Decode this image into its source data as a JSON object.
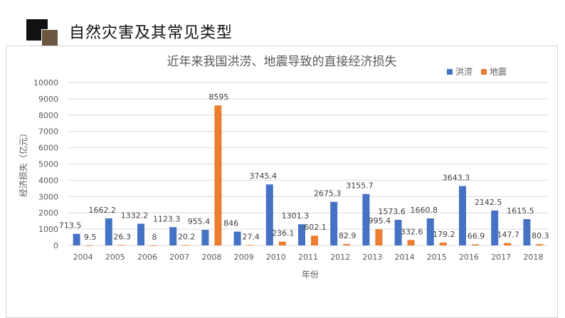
{
  "slide": {
    "title": "自然灾害及其常见类型"
  },
  "colors": {
    "flood": "#4472C4",
    "earthquake": "#ED7D31",
    "grid": "#dcdcdc",
    "text": "#595959"
  },
  "chart_data": {
    "type": "bar",
    "title": "近年来我国洪涝、地震导致的直接经济损失",
    "xlabel": "年份",
    "ylabel": "经济损失（亿元）",
    "ylim": [
      0,
      10000
    ],
    "yticks": [
      0,
      1000,
      2000,
      3000,
      4000,
      5000,
      6000,
      7000,
      8000,
      9000,
      10000
    ],
    "grid": true,
    "legend_position": "top-right",
    "categories": [
      "2004",
      "2005",
      "2006",
      "2007",
      "2008",
      "2009",
      "2010",
      "2011",
      "2012",
      "2013",
      "2014",
      "2015",
      "2016",
      "2017",
      "2018"
    ],
    "series": [
      {
        "name": "洪涝",
        "values": [
          713.5,
          1662.2,
          1332.2,
          1123.3,
          955.4,
          846,
          3745.4,
          1301.3,
          2675.3,
          3155.7,
          1573.6,
          1660.8,
          3643.3,
          2142.5,
          1615.5
        ],
        "labels": [
          "713.5",
          "1662.2",
          "1332.2",
          "1123.3",
          "955.4",
          "846",
          "3745.4",
          "1301.3",
          "2675.3",
          "3155.7",
          "1573.6",
          "1660.8",
          "3643.3",
          "2142.5",
          "1615.5"
        ]
      },
      {
        "name": "地震",
        "values": [
          9.5,
          26.3,
          8,
          20.2,
          8595,
          27.4,
          236.1,
          602.1,
          82.9,
          995.4,
          332.6,
          179.2,
          66.9,
          147.7,
          80.3
        ],
        "labels": [
          "9.5",
          "26.3",
          "8",
          "20.2",
          "8595",
          "27.4",
          "236.1",
          "602.1",
          "82.9",
          "995.4",
          "332.6",
          "179.2",
          "66.9",
          "147.7",
          "80.3"
        ]
      }
    ]
  }
}
